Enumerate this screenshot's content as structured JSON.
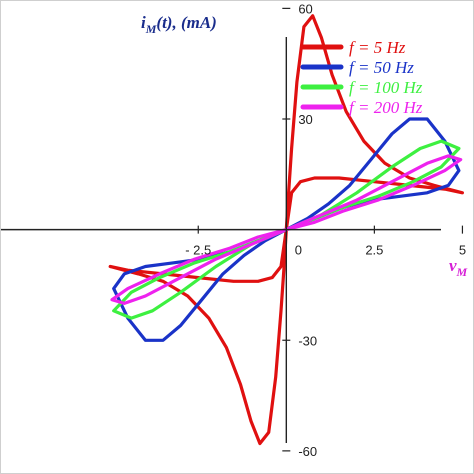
{
  "chart_data": {
    "type": "line",
    "title": "",
    "xlabel": "v_M",
    "ylabel": "i_M(t), (mA)",
    "ylabel_parts": {
      "main": "i",
      "sub": "M",
      "rest": "(t), (mA)"
    },
    "xlabel_parts": {
      "main": "v",
      "sub": "M"
    },
    "xlim": [
      -8.1,
      5.3
    ],
    "ylim": [
      -66,
      62
    ],
    "grid": false,
    "legend_position": "top-right",
    "x_ticks": [
      {
        "value": -2.5,
        "label": "- 2.5"
      },
      {
        "value": 0,
        "label": "0"
      },
      {
        "value": 2.5,
        "label": "2.5"
      },
      {
        "value": 5,
        "label": "5"
      }
    ],
    "y_ticks": [
      {
        "value": 60,
        "label": "60"
      },
      {
        "value": 30,
        "label": "30"
      },
      {
        "value": -30,
        "label": "-30"
      },
      {
        "value": -60,
        "label": "-60"
      }
    ],
    "series": [
      {
        "name": "f = 5 Hz",
        "color": "#e01010",
        "x": [
          0,
          0.05,
          0.15,
          0.3,
          0.5,
          0.75,
          1.0,
          1.3,
          1.7,
          2.2,
          2.8,
          3.5,
          4.2,
          5.0,
          4.5,
          3.5,
          2.5,
          1.5,
          0.8,
          0.4,
          0.15,
          0,
          -0.05,
          -0.15,
          -0.3,
          -0.5,
          -0.75,
          -1.0,
          -1.3,
          -1.7,
          -2.2,
          -2.8,
          -3.5,
          -4.2,
          -5.0,
          -4.5,
          -3.5,
          -2.5,
          -1.5,
          -0.8,
          -0.4,
          -0.15,
          0
        ],
        "y": [
          0,
          8,
          22,
          40,
          55,
          58,
          52,
          42,
          32,
          24,
          18,
          14,
          12,
          10,
          11,
          12,
          13,
          14,
          14,
          13,
          10,
          0,
          -8,
          -22,
          -40,
          -55,
          -58,
          -52,
          -42,
          -32,
          -24,
          -18,
          -14,
          -12,
          -10,
          -11,
          -12,
          -13,
          -14,
          -14,
          -13,
          -10,
          0
        ]
      },
      {
        "name": "f = 50 Hz",
        "color": "#1a33c8",
        "x": [
          0,
          0.6,
          1.2,
          1.8,
          2.4,
          3.0,
          3.5,
          4.0,
          4.5,
          4.9,
          4.6,
          4.0,
          3.2,
          2.4,
          1.6,
          0.8,
          0,
          -0.6,
          -1.2,
          -1.8,
          -2.4,
          -3.0,
          -3.5,
          -4.0,
          -4.5,
          -4.9,
          -4.6,
          -4.0,
          -3.2,
          -2.4,
          -1.6,
          -0.8,
          0
        ],
        "y": [
          0,
          3,
          7,
          12,
          19,
          26,
          30,
          30,
          24,
          16,
          12,
          10,
          9,
          8,
          6,
          3,
          0,
          -3,
          -7,
          -12,
          -19,
          -26,
          -30,
          -30,
          -24,
          -16,
          -12,
          -10,
          -9,
          -8,
          -6,
          -3,
          0
        ]
      },
      {
        "name": "f = 100 Hz",
        "color": "#3df040",
        "x": [
          0,
          1.0,
          2.0,
          3.0,
          3.8,
          4.4,
          4.9,
          4.4,
          3.6,
          2.6,
          1.6,
          0.8,
          0,
          -1.0,
          -2.0,
          -3.0,
          -3.8,
          -4.4,
          -4.9,
          -4.4,
          -3.6,
          -2.6,
          -1.6,
          -0.8,
          0
        ],
        "y": [
          0,
          4,
          10,
          17,
          22,
          24,
          22,
          17,
          13,
          9,
          6,
          3,
          0,
          -4,
          -10,
          -17,
          -22,
          -24,
          -22,
          -17,
          -13,
          -9,
          -6,
          -3,
          0
        ]
      },
      {
        "name": "f = 200 Hz",
        "color": "#ee22ee",
        "x": [
          0,
          1.0,
          2.0,
          3.0,
          4.0,
          4.6,
          4.95,
          4.5,
          3.6,
          2.6,
          1.6,
          0.8,
          0,
          -1.0,
          -2.0,
          -3.0,
          -4.0,
          -4.6,
          -4.95,
          -4.5,
          -3.6,
          -2.6,
          -1.6,
          -0.8,
          0
        ],
        "y": [
          0,
          4,
          8,
          13,
          18,
          20,
          19,
          16,
          12,
          8,
          5,
          2,
          0,
          -4,
          -8,
          -13,
          -18,
          -20,
          -19,
          -16,
          -12,
          -8,
          -5,
          -2,
          0
        ]
      }
    ]
  }
}
